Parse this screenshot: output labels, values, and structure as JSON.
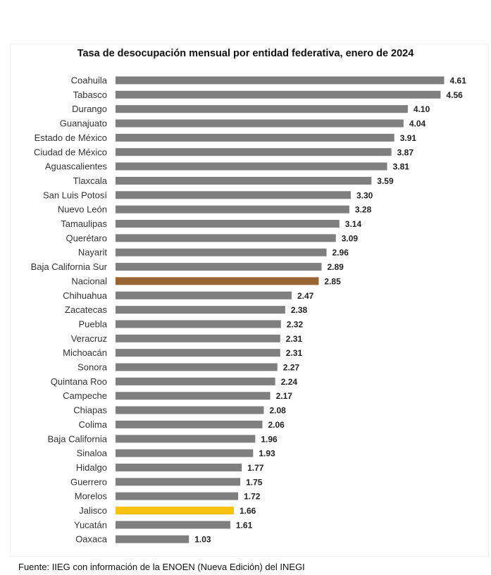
{
  "chart_data": {
    "type": "bar",
    "orientation": "horizontal",
    "title": "Tasa de desocupación mensual por entidad federativa, enero de 2024",
    "categories": [
      "Coahuila",
      "Tabasco",
      "Durango",
      "Guanajuato",
      "Estado de México",
      "Ciudad de México",
      "Aguascalientes",
      "Tlaxcala",
      "San Luis Potosí",
      "Nuevo León",
      "Tamaulipas",
      "Querétaro",
      "Nayarit",
      "Baja California Sur",
      "Nacional",
      "Chihuahua",
      "Zacatecas",
      "Puebla",
      "Veracruz",
      "Michoacán",
      "Sonora",
      "Quintana Roo",
      "Campeche",
      "Chiapas",
      "Colima",
      "Baja California",
      "Sinaloa",
      "Hidalgo",
      "Guerrero",
      "Morelos",
      "Jalisco",
      "Yucatán",
      "Oaxaca"
    ],
    "values": [
      4.61,
      4.56,
      4.1,
      4.04,
      3.91,
      3.87,
      3.81,
      3.59,
      3.3,
      3.28,
      3.14,
      3.09,
      2.96,
      2.89,
      2.85,
      2.47,
      2.38,
      2.32,
      2.31,
      2.31,
      2.27,
      2.24,
      2.17,
      2.08,
      2.06,
      1.96,
      1.93,
      1.77,
      1.75,
      1.72,
      1.66,
      1.61,
      1.03
    ],
    "value_labels": [
      "4.61",
      "4.56",
      "4.10",
      "4.04",
      "3.91",
      "3.87",
      "3.81",
      "3.59",
      "3.30",
      "3.28",
      "3.14",
      "3.09",
      "2.96",
      "2.89",
      "2.85",
      "2.47",
      "2.38",
      "2.32",
      "2.31",
      "2.31",
      "2.27",
      "2.24",
      "2.17",
      "2.08",
      "2.06",
      "1.96",
      "1.93",
      "1.77",
      "1.75",
      "1.72",
      "1.66",
      "1.61",
      "1.03"
    ],
    "xlim": [
      0,
      5
    ],
    "grid": false,
    "legend": "none",
    "colors": {
      "default": "#7f7f7f",
      "Nacional": "#996633",
      "Jalisco": "#f5c211"
    }
  },
  "source": "Fuente: IIEG con información de la ENOEN (Nueva Edición) del INEGI"
}
